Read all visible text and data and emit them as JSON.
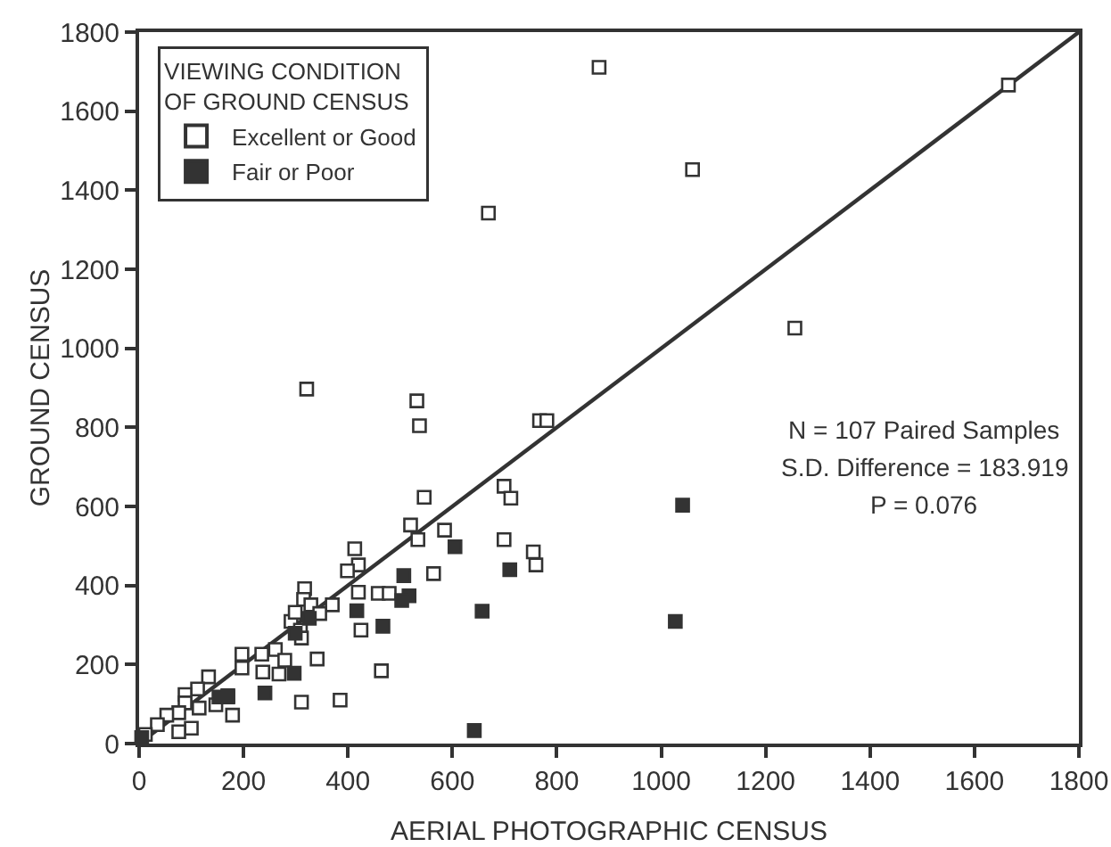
{
  "chart_data": {
    "type": "scatter",
    "xlabel": "AERIAL PHOTOGRAPHIC CENSUS",
    "ylabel": "GROUND CENSUS",
    "legend_title": "VIEWING CONDITION\nOF GROUND CENSUS",
    "legend": "top left",
    "marker": "square",
    "grid": false,
    "xlim": [
      0,
      1800
    ],
    "xticks": [
      0,
      200,
      400,
      600,
      800,
      1000,
      1200,
      1400,
      1600,
      1800
    ],
    "ylim": [
      0,
      1800
    ],
    "yticks": [
      0,
      200,
      400,
      600,
      800,
      1000,
      1200,
      1400,
      1600,
      1800
    ],
    "series": [
      {
        "name": "Excellent or Good",
        "color": "#ffffff",
        "x": [
          881,
          1665,
          1060,
          669,
          1256,
          321,
          532,
          537,
          767,
          781,
          699,
          712,
          699,
          755,
          760,
          546,
          520,
          585,
          534,
          564,
          413,
          420,
          399,
          420,
          458,
          479,
          425,
          464,
          317,
          315,
          329,
          370,
          346,
          291,
          299,
          309,
          311,
          341,
          197,
          235,
          261,
          279,
          237,
          268,
          197,
          311,
          385,
          133,
          112,
          88,
          88,
          115,
          147,
          170,
          179,
          76,
          53,
          100,
          76,
          35,
          12
        ],
        "values": [
          1711,
          1666,
          1452,
          1342,
          1051,
          897,
          867,
          804,
          817,
          817,
          651,
          621,
          516,
          485,
          452,
          623,
          553,
          540,
          516,
          430,
          493,
          452,
          437,
          383,
          380,
          380,
          287,
          184,
          392,
          365,
          351,
          351,
          329,
          309,
          332,
          287,
          267,
          214,
          226,
          226,
          238,
          211,
          181,
          176,
          191,
          105,
          110,
          169,
          138,
          124,
          103,
          90,
          98,
          121,
          72,
          78,
          72,
          39,
          30,
          48,
          23
        ]
      },
      {
        "name": "Fair or Poor",
        "color": "#333333",
        "x": [
          605,
          507,
          517,
          503,
          417,
          467,
          326,
          299,
          297,
          241,
          153,
          170,
          657,
          642,
          710,
          1041,
          1027,
          5
        ],
        "values": [
          498,
          425,
          374,
          362,
          336,
          297,
          317,
          279,
          178,
          128,
          118,
          118,
          335,
          33,
          440,
          603,
          309,
          15
        ]
      },
      {
        "type": "line",
        "marker": "none",
        "color": "#333333",
        "x": [
          0,
          1800
        ],
        "values": [
          0,
          1800
        ]
      }
    ],
    "annotations": [
      "N = 107 Paired Samples",
      "S.D. Difference = 183.919",
      "P = 0.076"
    ]
  }
}
